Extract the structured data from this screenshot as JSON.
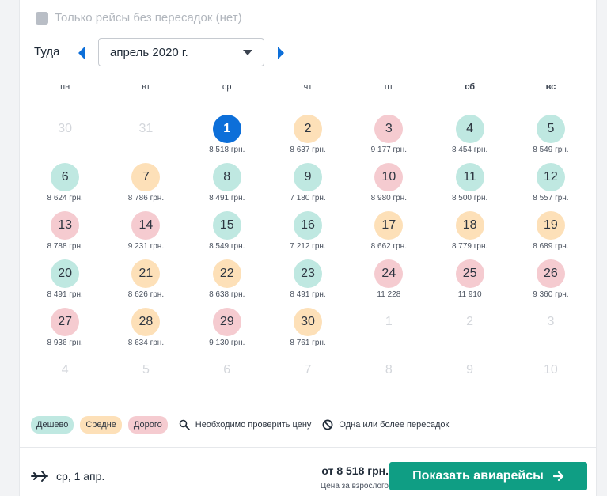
{
  "filters": {
    "direct_only_label": "Только рейсы без пересадок (нет)",
    "direct_only_checked": false
  },
  "picker": {
    "direction_label": "Туда",
    "month_value": "апрель 2020 г."
  },
  "weekdays": [
    "пн",
    "вт",
    "ср",
    "чт",
    "пт",
    "сб",
    "вс"
  ],
  "days": [
    {
      "day": "30",
      "price": "",
      "level": "muted"
    },
    {
      "day": "31",
      "price": "",
      "level": "muted"
    },
    {
      "day": "1",
      "price": "8 518 грн.",
      "level": "selected"
    },
    {
      "day": "2",
      "price": "8 637 грн.",
      "level": "mid"
    },
    {
      "day": "3",
      "price": "9 177 грн.",
      "level": "exp"
    },
    {
      "day": "4",
      "price": "8 454 грн.",
      "level": "cheap"
    },
    {
      "day": "5",
      "price": "8 549 грн.",
      "level": "cheap"
    },
    {
      "day": "6",
      "price": "8 624 грн.",
      "level": "cheap"
    },
    {
      "day": "7",
      "price": "8 786 грн.",
      "level": "mid"
    },
    {
      "day": "8",
      "price": "8 491 грн.",
      "level": "cheap"
    },
    {
      "day": "9",
      "price": "7 180 грн.",
      "level": "cheap"
    },
    {
      "day": "10",
      "price": "8 980 грн.",
      "level": "exp"
    },
    {
      "day": "11",
      "price": "8 500 грн.",
      "level": "cheap"
    },
    {
      "day": "12",
      "price": "8 557 грн.",
      "level": "cheap"
    },
    {
      "day": "13",
      "price": "8 788 грн.",
      "level": "exp"
    },
    {
      "day": "14",
      "price": "9 231 грн.",
      "level": "exp"
    },
    {
      "day": "15",
      "price": "8 549 грн.",
      "level": "cheap"
    },
    {
      "day": "16",
      "price": "7 212 грн.",
      "level": "cheap"
    },
    {
      "day": "17",
      "price": "8 662 грн.",
      "level": "mid"
    },
    {
      "day": "18",
      "price": "8 779 грн.",
      "level": "mid"
    },
    {
      "day": "19",
      "price": "8 689 грн.",
      "level": "mid"
    },
    {
      "day": "20",
      "price": "8 491 грн.",
      "level": "cheap"
    },
    {
      "day": "21",
      "price": "8 626 грн.",
      "level": "mid"
    },
    {
      "day": "22",
      "price": "8 638 грн.",
      "level": "mid"
    },
    {
      "day": "23",
      "price": "8 491 грн.",
      "level": "cheap"
    },
    {
      "day": "24",
      "price": "11 228",
      "level": "exp"
    },
    {
      "day": "25",
      "price": "11 910",
      "level": "exp"
    },
    {
      "day": "26",
      "price": "9 360 грн.",
      "level": "exp"
    },
    {
      "day": "27",
      "price": "8 936 грн.",
      "level": "exp"
    },
    {
      "day": "28",
      "price": "8 634 грн.",
      "level": "mid"
    },
    {
      "day": "29",
      "price": "9 130 грн.",
      "level": "exp"
    },
    {
      "day": "30",
      "price": "8 761 грн.",
      "level": "mid"
    },
    {
      "day": "1",
      "price": "",
      "level": "muted"
    },
    {
      "day": "2",
      "price": "",
      "level": "muted"
    },
    {
      "day": "3",
      "price": "",
      "level": "muted"
    },
    {
      "day": "4",
      "price": "",
      "level": "muted"
    },
    {
      "day": "5",
      "price": "",
      "level": "muted"
    },
    {
      "day": "6",
      "price": "",
      "level": "muted"
    },
    {
      "day": "7",
      "price": "",
      "level": "muted"
    },
    {
      "day": "8",
      "price": "",
      "level": "muted"
    },
    {
      "day": "9",
      "price": "",
      "level": "muted"
    },
    {
      "day": "10",
      "price": "",
      "level": "muted"
    }
  ],
  "legend": {
    "cheap": "Дешево",
    "mid": "Средне",
    "exp": "Дорого",
    "check_price": "Необходимо проверить цену",
    "with_stops": "Одна или более пересадок"
  },
  "footer": {
    "trip_date": "ср, 1 апр.",
    "from_price": "от 8 518 грн.",
    "adult_note": "Цена за взрослого",
    "show_button": "Показать авиарейсы"
  },
  "colors": {
    "cheap": "#bfe8e1",
    "mid": "#fde0b8",
    "expensive": "#f5cbd0",
    "selected": "#0d6fd9",
    "primary_button": "#0f9e84",
    "arrow": "#0d6fd9"
  },
  "icons": {
    "checkbox": "checkbox-icon",
    "prev": "chevron-left-icon",
    "next": "chevron-right-icon",
    "dropdown": "caret-down-icon",
    "search": "search-icon",
    "no_direct": "prohibited-icon",
    "plane": "plane-icon",
    "arrow": "arrow-right-icon"
  }
}
